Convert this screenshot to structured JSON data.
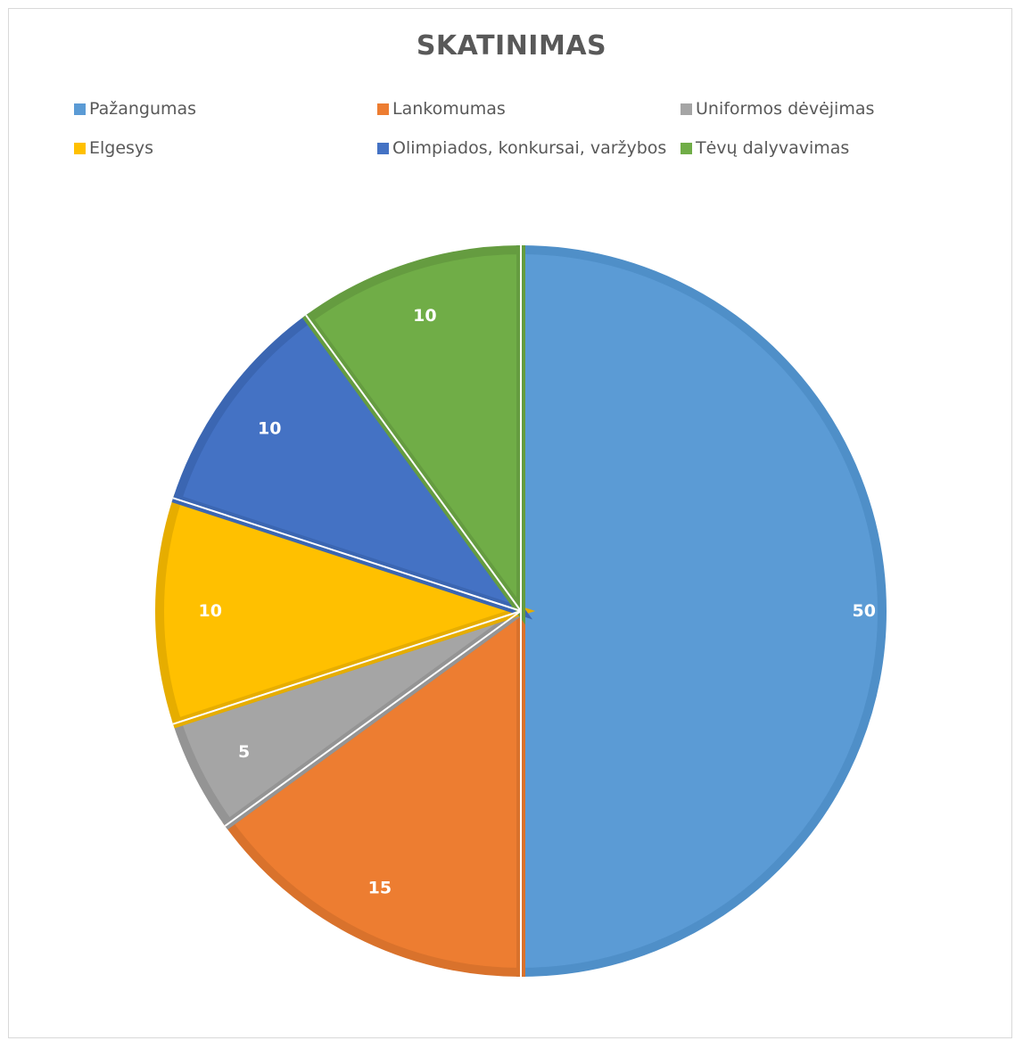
{
  "chart_data": {
    "type": "pie",
    "title": "SKATINIMAS",
    "legend_position": "top",
    "start_angle_deg": 0,
    "direction": "clockwise",
    "slices": [
      {
        "label": "Pažangumas",
        "value": 50,
        "color": "#5b9bd5",
        "edge": "#4f8fc8"
      },
      {
        "label": "Lankomumas",
        "value": 15,
        "color": "#ed7d31",
        "edge": "#d9722c"
      },
      {
        "label": "Uniformos dėvėjimas",
        "value": 5,
        "color": "#a5a5a5",
        "edge": "#949494"
      },
      {
        "label": "Elgesys",
        "value": 10,
        "color": "#ffc000",
        "edge": "#e6ad00"
      },
      {
        "label": "Olimpiados, konkursai, varžybos",
        "value": 10,
        "color": "#4472c4",
        "edge": "#3b66b2"
      },
      {
        "label": "Tėvų dalyvavimas",
        "value": 10,
        "color": "#70ad47",
        "edge": "#659c40"
      }
    ]
  }
}
